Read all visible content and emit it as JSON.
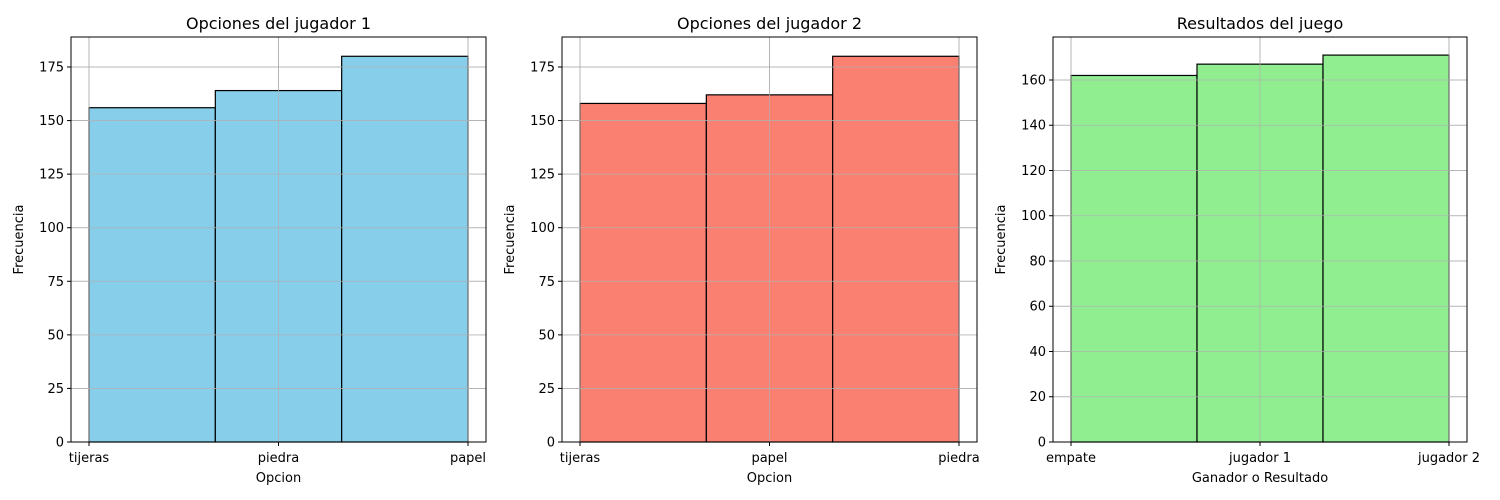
{
  "chart_data": [
    {
      "type": "bar",
      "title": "Opciones del jugador 1",
      "xlabel": "Opcion",
      "ylabel": "Frecuencia",
      "categories": [
        "tijeras",
        "piedra",
        "papel"
      ],
      "values": [
        156,
        164,
        180
      ],
      "ylim": [
        0,
        189
      ],
      "yticks": [
        0,
        25,
        50,
        75,
        100,
        125,
        150,
        175
      ],
      "color": "#87ceeb",
      "grid": true
    },
    {
      "type": "bar",
      "title": "Opciones del jugador 2",
      "xlabel": "Opcion",
      "ylabel": "Frecuencia",
      "categories": [
        "tijeras",
        "papel",
        "piedra"
      ],
      "values": [
        158,
        162,
        180
      ],
      "ylim": [
        0,
        189
      ],
      "yticks": [
        0,
        25,
        50,
        75,
        100,
        125,
        150,
        175
      ],
      "color": "#fa8072",
      "grid": true
    },
    {
      "type": "bar",
      "title": "Resultados del juego",
      "xlabel": "Ganador o Resultado",
      "ylabel": "Frecuencia",
      "categories": [
        "empate",
        "jugador 1",
        "jugador 2"
      ],
      "values": [
        162,
        167,
        171
      ],
      "ylim": [
        0,
        179
      ],
      "yticks": [
        0,
        20,
        40,
        60,
        80,
        100,
        120,
        140,
        160
      ],
      "color": "#90ee90",
      "grid": true
    }
  ]
}
